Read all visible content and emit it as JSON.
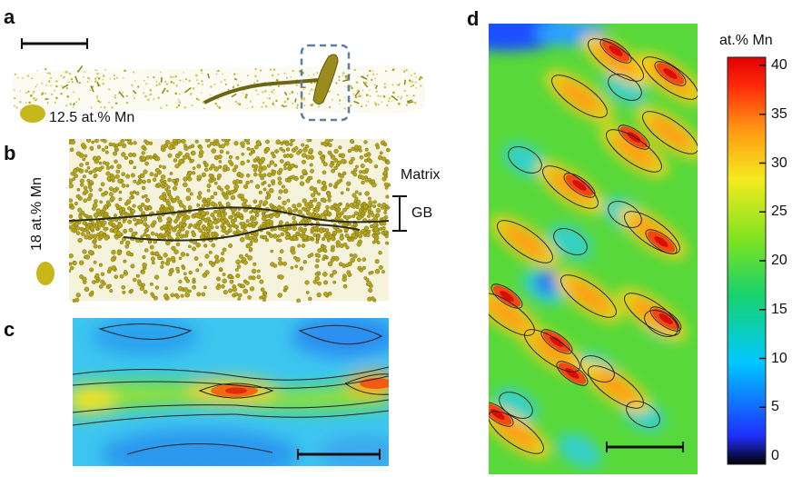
{
  "panels": {
    "a": {
      "label": "a",
      "legend_text": "12.5 at.% Mn"
    },
    "b": {
      "label": "b",
      "legend_text": "18 at.% Mn",
      "matrix_label": "Matrix",
      "gb_label": "GB"
    },
    "c": {
      "label": "c"
    },
    "d": {
      "label": "d"
    }
  },
  "colorbar": {
    "title": "at.% Mn",
    "ticks": [
      "40",
      "35",
      "30",
      "25",
      "20",
      "15",
      "10",
      "5",
      "0"
    ],
    "range": [
      0,
      40
    ],
    "colors": [
      "#000000",
      "#1f2fff",
      "#00c8ff",
      "#19d36b",
      "#7de321",
      "#f4ea1e",
      "#ff9a14",
      "#ff2a0a",
      "#e00000"
    ]
  },
  "colors": {
    "atom": "#b8a916",
    "atom_dark": "#7a6f0c",
    "box_dash": "#5a7fa0"
  }
}
